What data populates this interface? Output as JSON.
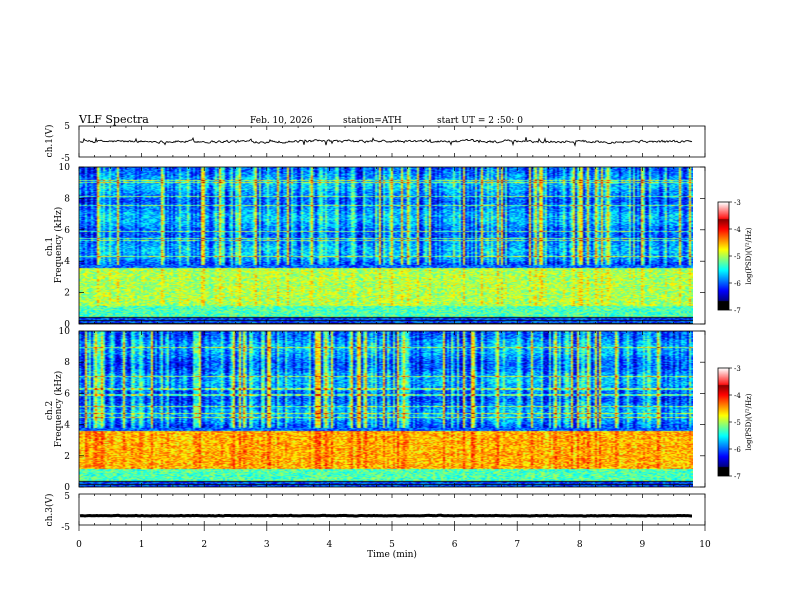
{
  "header": {
    "title": "VLF  Spectra",
    "date": "Feb. 10, 2026",
    "station": "station=ATH",
    "start": "start  UT  =   2  :50: 0"
  },
  "chart_data": [
    {
      "type": "line",
      "name": "ch1-waveform",
      "ylabel": "ch.1(V)",
      "ylim": [
        -5,
        5
      ],
      "yticks": [
        "5",
        "-5"
      ],
      "xlim": [
        0,
        10
      ],
      "level": 0,
      "noise_amplitude": 0.7,
      "data_end_min": 9.8
    },
    {
      "type": "heatmap",
      "name": "ch1-spectrogram",
      "ylabel": "ch.1\nFrequency  (kHz)",
      "ylim": [
        0,
        10
      ],
      "yticks": [
        "0",
        "2",
        "4",
        "6",
        "8",
        "10"
      ],
      "xlim": [
        0,
        10
      ],
      "data_end_min": 9.8,
      "colorbar": {
        "label": "log(PSD)(V²/Hz)",
        "range": [
          -7,
          -3
        ],
        "ticks": [
          "-3",
          "-4",
          "-5",
          "-6",
          "-7"
        ]
      }
    },
    {
      "type": "heatmap",
      "name": "ch2-spectrogram",
      "ylabel": "ch.2\nFrequency  (kHz)",
      "ylim": [
        0,
        10
      ],
      "yticks": [
        "0",
        "2",
        "4",
        "6",
        "8",
        "10"
      ],
      "xlim": [
        0,
        10
      ],
      "data_end_min": 9.8,
      "colorbar": {
        "label": "log(PSD)(V²/Hz)",
        "range": [
          -7,
          -3
        ],
        "ticks": [
          "-3",
          "-4",
          "-5",
          "-6",
          "-7"
        ]
      }
    },
    {
      "type": "line",
      "name": "ch3-waveform",
      "ylabel": "ch.3(V)",
      "ylim": [
        -5,
        5
      ],
      "yticks": [
        "5",
        "-5"
      ],
      "xlim": [
        0,
        10
      ],
      "level": -2,
      "noise_amplitude": 0.15,
      "data_end_min": 9.8,
      "xlabel": "Time  (min)",
      "xticks": [
        "0",
        "1",
        "2",
        "3",
        "4",
        "5",
        "6",
        "7",
        "8",
        "9",
        "10"
      ]
    }
  ]
}
